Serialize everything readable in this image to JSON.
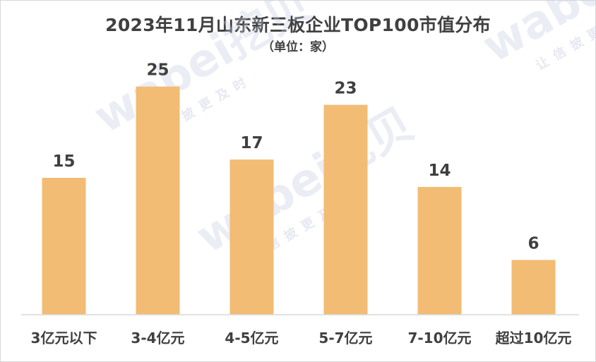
{
  "chart_data": {
    "type": "bar",
    "title": "2023年11月山东新三板企业TOP100市值分布",
    "subtitle": "（单位：家）",
    "categories": [
      "3亿元以下",
      "3-4亿元",
      "4-5亿元",
      "5-7亿元",
      "7-10亿元",
      "超过10亿元"
    ],
    "values": [
      15,
      25,
      17,
      23,
      14,
      6
    ],
    "ylim": [
      0,
      30
    ],
    "grid": false,
    "legend": "none",
    "bar_color": "#f2bc74"
  },
  "watermark": {
    "brand": "wabei挖贝",
    "tagline": "让信披更及时"
  }
}
